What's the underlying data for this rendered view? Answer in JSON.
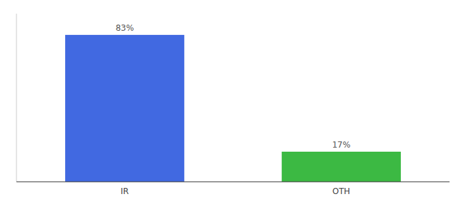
{
  "chart_data": {
    "type": "bar",
    "categories": [
      "IR",
      "OTH"
    ],
    "values": [
      83,
      17
    ],
    "colors": [
      "#4169E1",
      "#3CB943"
    ],
    "value_labels": [
      "83%",
      "17%"
    ],
    "data_labels": true,
    "ylim": [
      0,
      95
    ],
    "tick_labels": "x",
    "grid": false
  }
}
